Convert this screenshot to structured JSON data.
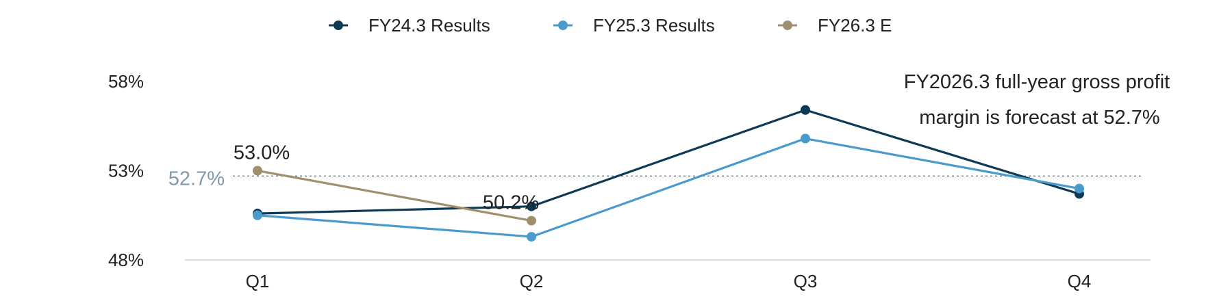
{
  "chart_data": {
    "type": "line",
    "categories": [
      "Q1",
      "Q2",
      "Q3",
      "Q4"
    ],
    "series": [
      {
        "name": "FY24.3 Results",
        "color": "#0e3a56",
        "values": [
          50.6,
          51.0,
          56.4,
          51.7
        ]
      },
      {
        "name": "FY25.3 Results",
        "color": "#4a9acb",
        "values": [
          50.5,
          49.3,
          54.8,
          52.0
        ]
      },
      {
        "name": "FY26.3 E",
        "color": "#a08f6c",
        "values": [
          53.0,
          50.2,
          null,
          null
        ]
      }
    ],
    "y_ticks": [
      "58%",
      "53%",
      "48%"
    ],
    "y_tick_values": [
      58,
      53,
      48
    ],
    "ylim": [
      48,
      58
    ],
    "reference_line": {
      "value": 52.7,
      "label": "52.7%",
      "color": "#7f9aaa"
    },
    "data_labels": [
      {
        "series": 2,
        "index": 0,
        "text": "53.0%"
      },
      {
        "series": 2,
        "index": 1,
        "text": "50.2%"
      }
    ],
    "annotation": {
      "lines": [
        "FY2026.3 full-year gross profit",
        "margin is forecast at 52.7%"
      ]
    },
    "legend_position": "top-center",
    "grid": false
  }
}
